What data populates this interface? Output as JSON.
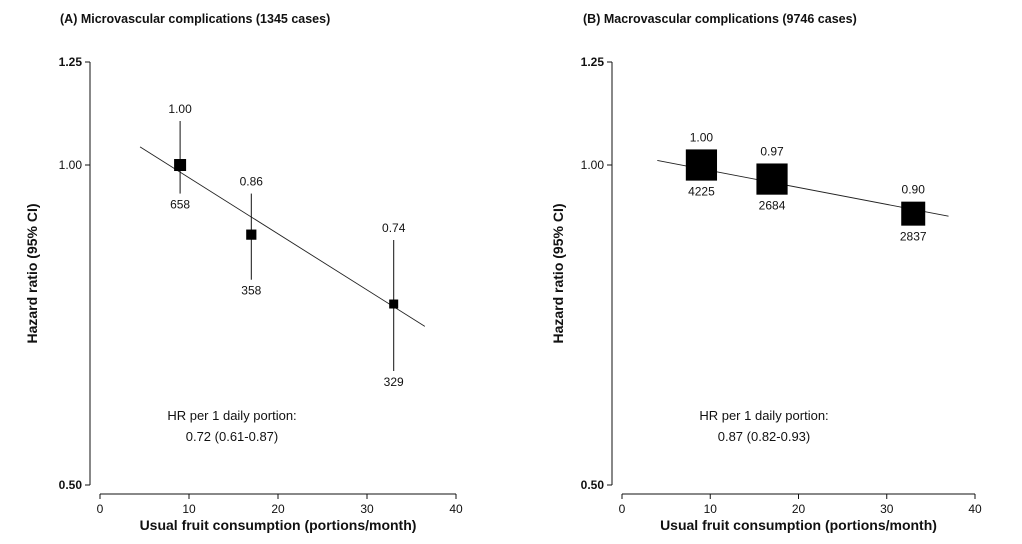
{
  "chart_data": [
    {
      "type": "scatter",
      "title": "(A) Microvascular complications (1345 cases)",
      "xlabel": "Usual fruit consumption (portions/month)",
      "ylabel": "Hazard ratio (95% CI)",
      "xlim": [
        0,
        40
      ],
      "ylim": [
        0.5,
        1.25
      ],
      "yscale": "log",
      "xticks": [
        "0",
        "10",
        "20",
        "30",
        "40"
      ],
      "yticks": [
        "0.50",
        "1.00",
        "1.25"
      ],
      "yticks_values": [
        0.5,
        1.0,
        1.25
      ],
      "points": [
        {
          "x": 9,
          "hr": 1.0,
          "hr_label": "1.00",
          "ci_low": 0.94,
          "ci_high": 1.1,
          "cases": "658",
          "marker_size": 1.0
        },
        {
          "x": 17,
          "hr": 0.86,
          "hr_label": "0.86",
          "ci_low": 0.78,
          "ci_high": 0.94,
          "cases": "358",
          "marker_size": 0.85
        },
        {
          "x": 33,
          "hr": 0.74,
          "hr_label": "0.74",
          "ci_low": 0.64,
          "ci_high": 0.85,
          "cases": "329",
          "marker_size": 0.75
        }
      ],
      "trend": {
        "x": [
          4.5,
          36.5
        ],
        "y": [
          1.04,
          0.705
        ]
      },
      "annotation": [
        "HR per 1 daily portion:",
        "0.72 (0.61-0.87)"
      ],
      "grid": false
    },
    {
      "type": "scatter",
      "title": "(B) Macrovascular complications (9746 cases)",
      "xlabel": "Usual fruit consumption (portions/month)",
      "ylabel": "Hazard ratio (95% CI)",
      "xlim": [
        0,
        40
      ],
      "ylim": [
        0.5,
        1.25
      ],
      "yscale": "log",
      "xticks": [
        "0",
        "10",
        "20",
        "30",
        "40"
      ],
      "yticks": [
        "0.50",
        "1.00",
        "1.25"
      ],
      "yticks_values": [
        0.5,
        1.0,
        1.25
      ],
      "points": [
        {
          "x": 9,
          "hr": 1.0,
          "hr_label": "1.00",
          "ci_low": 0.99,
          "ci_high": 1.01,
          "cases": "4225",
          "marker_size": 2.6
        },
        {
          "x": 17,
          "hr": 0.97,
          "hr_label": "0.97",
          "ci_low": 0.95,
          "ci_high": 0.99,
          "cases": "2684",
          "marker_size": 2.6
        },
        {
          "x": 33,
          "hr": 0.9,
          "hr_label": "0.90",
          "ci_low": 0.88,
          "ci_high": 0.92,
          "cases": "2837",
          "marker_size": 2.0
        }
      ],
      "trend": {
        "x": [
          4,
          37
        ],
        "y": [
          1.01,
          0.895
        ]
      },
      "annotation": [
        "HR per 1 daily portion:",
        "0.87 (0.82-0.93)"
      ],
      "grid": false
    }
  ]
}
